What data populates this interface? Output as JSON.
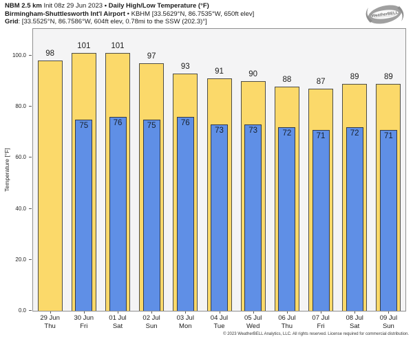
{
  "header": {
    "model": "NBM 2.5 km",
    "init": " Init 08z 29 Jun 2023 ",
    "product": "• Daily High/Low Temperature (°F)",
    "station": "Birmingham-Shuttlesworth Int'l Airport",
    "station_meta": " • KBHM [33.5629°N, 86.7535°W, 650ft elev]",
    "grid_label": "Grid",
    "grid_meta": ": [33.5525°N, 86.7586°W, 604ft elev, 0.78mi to the SSW (202.3)°]"
  },
  "logo": {
    "text": "WeatherBELL"
  },
  "footer": {
    "copyright": "© 2023 WeatherBELL Analytics, LLC. All rights reserved. License required for commercial distribution."
  },
  "chart_data": {
    "type": "bar",
    "title": "Daily High/Low Temperature (°F)",
    "ylabel": "Temperature [°F]",
    "ylim": [
      0,
      110.5
    ],
    "yticks": [
      0,
      20,
      40,
      60,
      80,
      100
    ],
    "ytick_labels": [
      "0.0",
      "20.0",
      "40.0",
      "60.0",
      "80.0",
      "100.0"
    ],
    "grid": false,
    "legend": "none",
    "categories_date": [
      "29 Jun",
      "30 Jun",
      "01 Jul",
      "02 Jul",
      "03 Jul",
      "04 Jul",
      "05 Jul",
      "06 Jul",
      "07 Jul",
      "08 Jul",
      "09 Jul"
    ],
    "categories_day": [
      "Thu",
      "Fri",
      "Sat",
      "Sun",
      "Mon",
      "Tue",
      "Wed",
      "Thu",
      "Fri",
      "Sat",
      "Sun"
    ],
    "series": [
      {
        "name": "Daily High",
        "color": "#fbd96a",
        "values": [
          98,
          101,
          101,
          97,
          93,
          91,
          90,
          88,
          87,
          89,
          89
        ]
      },
      {
        "name": "Daily Low",
        "color": "#5f8fe6",
        "values": [
          null,
          75,
          76,
          75,
          76,
          73,
          73,
          72,
          71,
          72,
          71
        ]
      }
    ],
    "colors": {
      "plot_bg": "#f4f4f5",
      "frame": "#8f8f8f",
      "high_border": "#4c4c46",
      "low_border": "#333a46"
    }
  }
}
